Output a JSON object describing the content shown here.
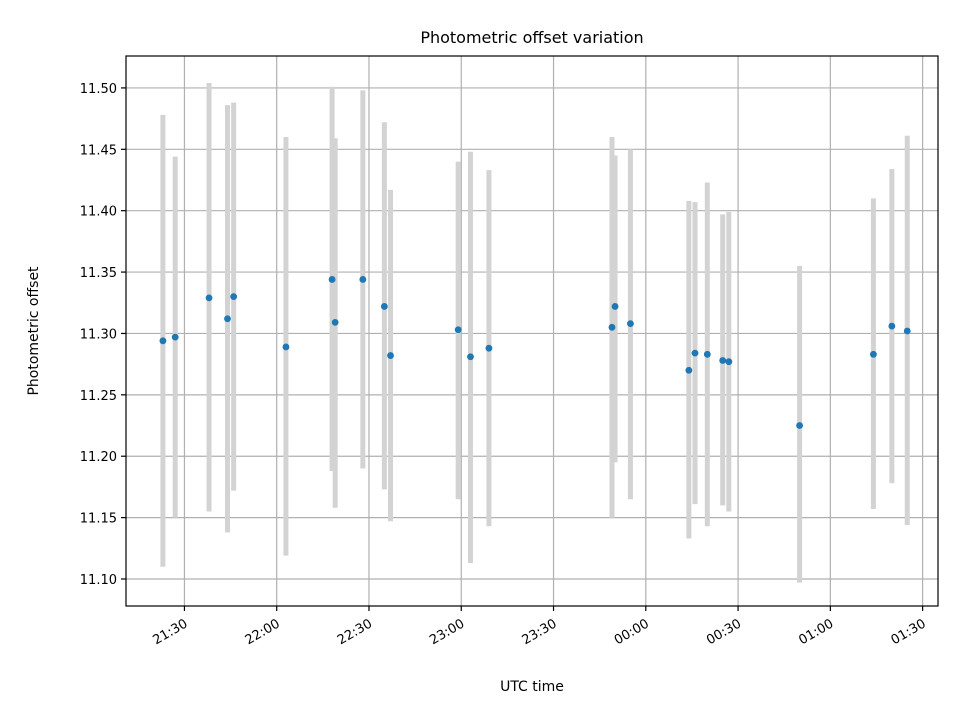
{
  "chart_data": {
    "type": "scatter",
    "title": "Photometric offset variation",
    "xlabel": "UTC time",
    "ylabel": "Photometric offset",
    "x_axis_kind": "time",
    "xlim": [
      "21:11",
      "01:35"
    ],
    "ylim": [
      11.078,
      11.526
    ],
    "x_ticks": [
      "21:30",
      "22:00",
      "22:30",
      "23:00",
      "23:30",
      "00:00",
      "00:30",
      "01:00",
      "01:30"
    ],
    "y_ticks": [
      "11.10",
      "11.15",
      "11.20",
      "11.25",
      "11.30",
      "11.35",
      "11.40",
      "11.45",
      "11.50"
    ],
    "grid": true,
    "point_color": "#1f77b4",
    "errorbar_color": "#d3d3d3",
    "points": [
      {
        "t": "21:23",
        "y": 11.294,
        "lo": 11.11,
        "hi": 11.478
      },
      {
        "t": "21:27",
        "y": 11.297,
        "lo": 11.15,
        "hi": 11.444
      },
      {
        "t": "21:38",
        "y": 11.329,
        "lo": 11.155,
        "hi": 11.504
      },
      {
        "t": "21:44",
        "y": 11.312,
        "lo": 11.138,
        "hi": 11.486
      },
      {
        "t": "21:46",
        "y": 11.33,
        "lo": 11.172,
        "hi": 11.488
      },
      {
        "t": "22:03",
        "y": 11.289,
        "lo": 11.119,
        "hi": 11.46
      },
      {
        "t": "22:18",
        "y": 11.344,
        "lo": 11.188,
        "hi": 11.501
      },
      {
        "t": "22:19",
        "y": 11.309,
        "lo": 11.158,
        "hi": 11.459
      },
      {
        "t": "22:28",
        "y": 11.344,
        "lo": 11.19,
        "hi": 11.498
      },
      {
        "t": "22:35",
        "y": 11.322,
        "lo": 11.173,
        "hi": 11.472
      },
      {
        "t": "22:37",
        "y": 11.282,
        "lo": 11.147,
        "hi": 11.417
      },
      {
        "t": "22:59",
        "y": 11.303,
        "lo": 11.165,
        "hi": 11.44
      },
      {
        "t": "23:03",
        "y": 11.281,
        "lo": 11.113,
        "hi": 11.448
      },
      {
        "t": "23:09",
        "y": 11.288,
        "lo": 11.143,
        "hi": 11.433
      },
      {
        "t": "23:49",
        "y": 11.305,
        "lo": 11.15,
        "hi": 11.46
      },
      {
        "t": "23:50",
        "y": 11.322,
        "lo": 11.195,
        "hi": 11.445
      },
      {
        "t": "23:55",
        "y": 11.308,
        "lo": 11.165,
        "hi": 11.45
      },
      {
        "t": "00:14",
        "y": 11.27,
        "lo": 11.133,
        "hi": 11.408
      },
      {
        "t": "00:16",
        "y": 11.284,
        "lo": 11.161,
        "hi": 11.407
      },
      {
        "t": "00:20",
        "y": 11.283,
        "lo": 11.143,
        "hi": 11.423
      },
      {
        "t": "00:25",
        "y": 11.278,
        "lo": 11.16,
        "hi": 11.397
      },
      {
        "t": "00:27",
        "y": 11.277,
        "lo": 11.155,
        "hi": 11.399
      },
      {
        "t": "00:50",
        "y": 11.225,
        "lo": 11.097,
        "hi": 11.355
      },
      {
        "t": "01:14",
        "y": 11.283,
        "lo": 11.157,
        "hi": 11.41
      },
      {
        "t": "01:20",
        "y": 11.306,
        "lo": 11.178,
        "hi": 11.434
      },
      {
        "t": "01:25",
        "y": 11.302,
        "lo": 11.144,
        "hi": 11.461
      }
    ]
  }
}
